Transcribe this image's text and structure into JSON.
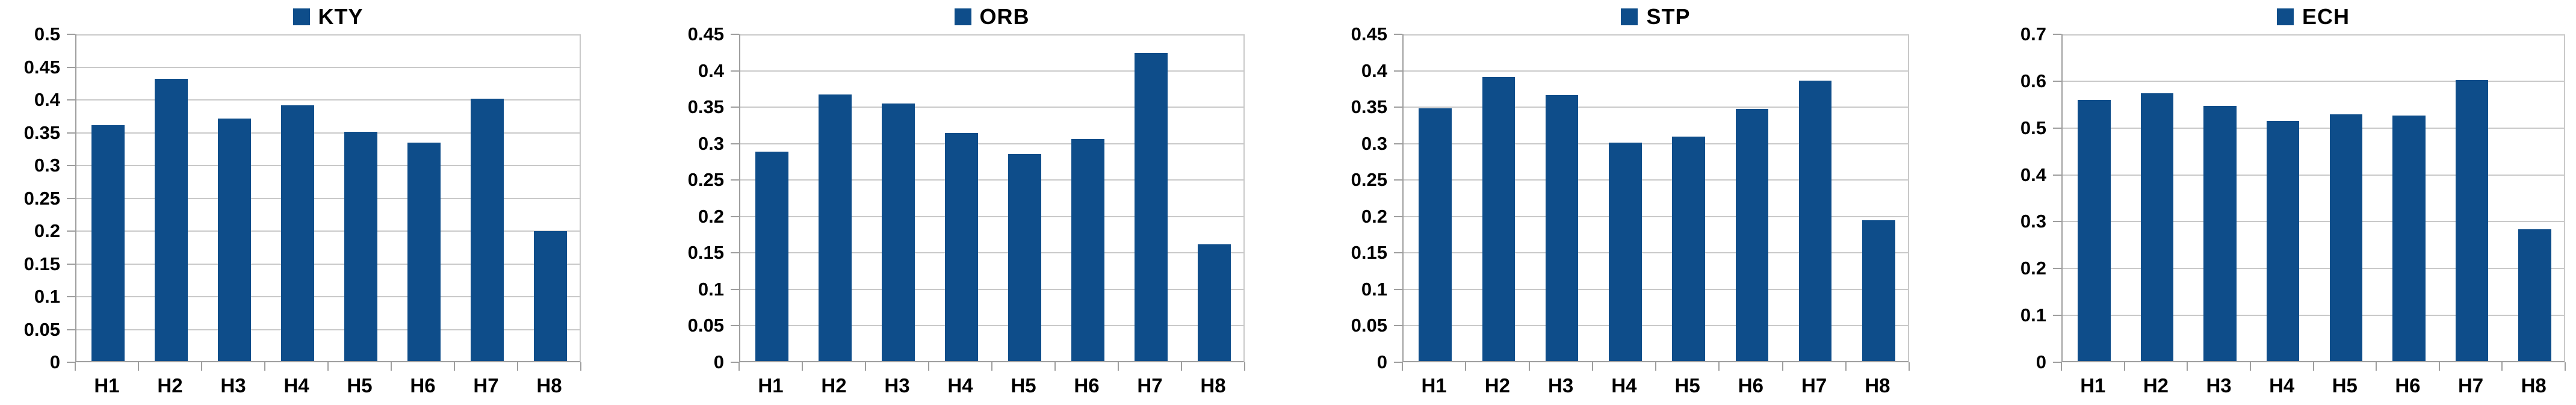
{
  "colors": {
    "bar": "#0e4d8a",
    "gridline": "#c9c9c9",
    "axis": "#9e9e9e",
    "text": "#000000",
    "background": "#ffffff"
  },
  "chart_data": [
    {
      "type": "bar",
      "title": "KTY",
      "categories": [
        "H1",
        "H2",
        "H3",
        "H4",
        "H5",
        "H6",
        "H7",
        "H8"
      ],
      "values": [
        0.36,
        0.43,
        0.37,
        0.39,
        0.35,
        0.333,
        0.4,
        0.198
      ],
      "xlabel": "",
      "ylabel": "",
      "ylim": [
        0,
        0.5
      ],
      "ytick_step": 0.05,
      "ytick_labels": [
        "0.5",
        "0.45",
        "0.4",
        "0.35",
        "0.3",
        "0.25",
        "0.2",
        "0.15",
        "0.1",
        "0.05",
        "0"
      ],
      "grid": true,
      "legend_position": "top"
    },
    {
      "type": "bar",
      "title": "ORB",
      "categories": [
        "H1",
        "H2",
        "H3",
        "H4",
        "H5",
        "H6",
        "H7",
        "H8"
      ],
      "values": [
        0.287,
        0.366,
        0.353,
        0.313,
        0.284,
        0.305,
        0.423,
        0.16
      ],
      "xlabel": "",
      "ylabel": "",
      "ylim": [
        0,
        0.45
      ],
      "ytick_step": 0.05,
      "ytick_labels": [
        "0.45",
        "0.4",
        "0.35",
        "0.3",
        "0.25",
        "0.2",
        "0.15",
        "0.1",
        "0.05",
        "0"
      ],
      "grid": true,
      "legend_position": "top"
    },
    {
      "type": "bar",
      "title": "STP",
      "categories": [
        "H1",
        "H2",
        "H3",
        "H4",
        "H5",
        "H6",
        "H7",
        "H8"
      ],
      "values": [
        0.347,
        0.39,
        0.365,
        0.3,
        0.308,
        0.346,
        0.385,
        0.193
      ],
      "xlabel": "",
      "ylabel": "",
      "ylim": [
        0,
        0.45
      ],
      "ytick_step": 0.05,
      "ytick_labels": [
        "0.45",
        "0.4",
        "0.35",
        "0.3",
        "0.25",
        "0.2",
        "0.15",
        "0.1",
        "0.05",
        "0"
      ],
      "grid": true,
      "legend_position": "top"
    },
    {
      "type": "bar",
      "title": "ECH",
      "categories": [
        "H1",
        "H2",
        "H3",
        "H4",
        "H5",
        "H6",
        "H7",
        "H8"
      ],
      "values": [
        0.557,
        0.572,
        0.545,
        0.512,
        0.527,
        0.524,
        0.6,
        0.281
      ],
      "xlabel": "",
      "ylabel": "",
      "ylim": [
        0,
        0.7
      ],
      "ytick_step": 0.1,
      "ytick_labels": [
        "0.7",
        "0.6",
        "0.5",
        "0.4",
        "0.3",
        "0.2",
        "0.1",
        "0"
      ],
      "grid": true,
      "legend_position": "top"
    }
  ]
}
